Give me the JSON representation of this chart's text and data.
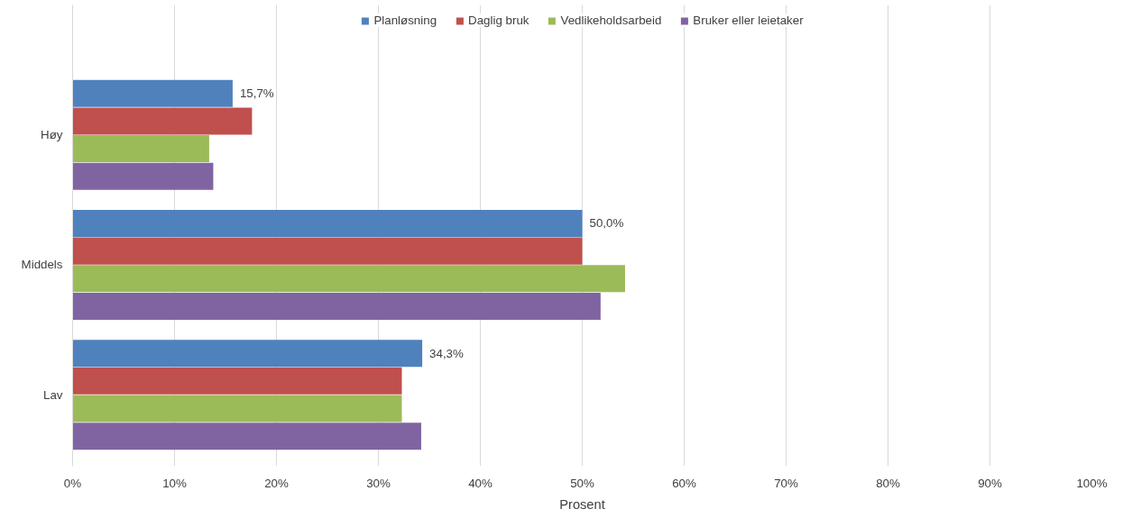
{
  "chart_data": {
    "type": "bar",
    "orientation": "horizontal",
    "xlabel": "Prosent",
    "categories": [
      "Høy",
      "Middels",
      "Lav"
    ],
    "series": [
      {
        "name": "Planløsning",
        "color": "#4f81bd",
        "values": [
          15.7,
          50.0,
          34.3
        ],
        "value_labels": [
          "15,7%",
          "50,0%",
          "34,3%"
        ]
      },
      {
        "name": "Daglig bruk",
        "color": "#c0504d",
        "values": [
          17.6,
          50.0,
          32.3
        ]
      },
      {
        "name": "Vedlikeholdsarbeid",
        "color": "#9bbb59",
        "values": [
          13.4,
          54.2,
          32.3
        ]
      },
      {
        "name": "Bruker eller leietaker",
        "color": "#8064a2",
        "values": [
          13.8,
          51.8,
          34.2
        ]
      }
    ],
    "xlim": [
      0,
      100
    ],
    "xticks": [
      {
        "value": 0,
        "label": "0%"
      },
      {
        "value": 10,
        "label": "10%"
      },
      {
        "value": 20,
        "label": "20%"
      },
      {
        "value": 30,
        "label": "30%"
      },
      {
        "value": 40,
        "label": "40%"
      },
      {
        "value": 50,
        "label": "50%"
      },
      {
        "value": 60,
        "label": "60%"
      },
      {
        "value": 70,
        "label": "70%"
      },
      {
        "value": 80,
        "label": "80%"
      },
      {
        "value": 90,
        "label": "90%"
      },
      {
        "value": 100,
        "label": "100%"
      }
    ],
    "grid": "x",
    "legend": "top"
  }
}
